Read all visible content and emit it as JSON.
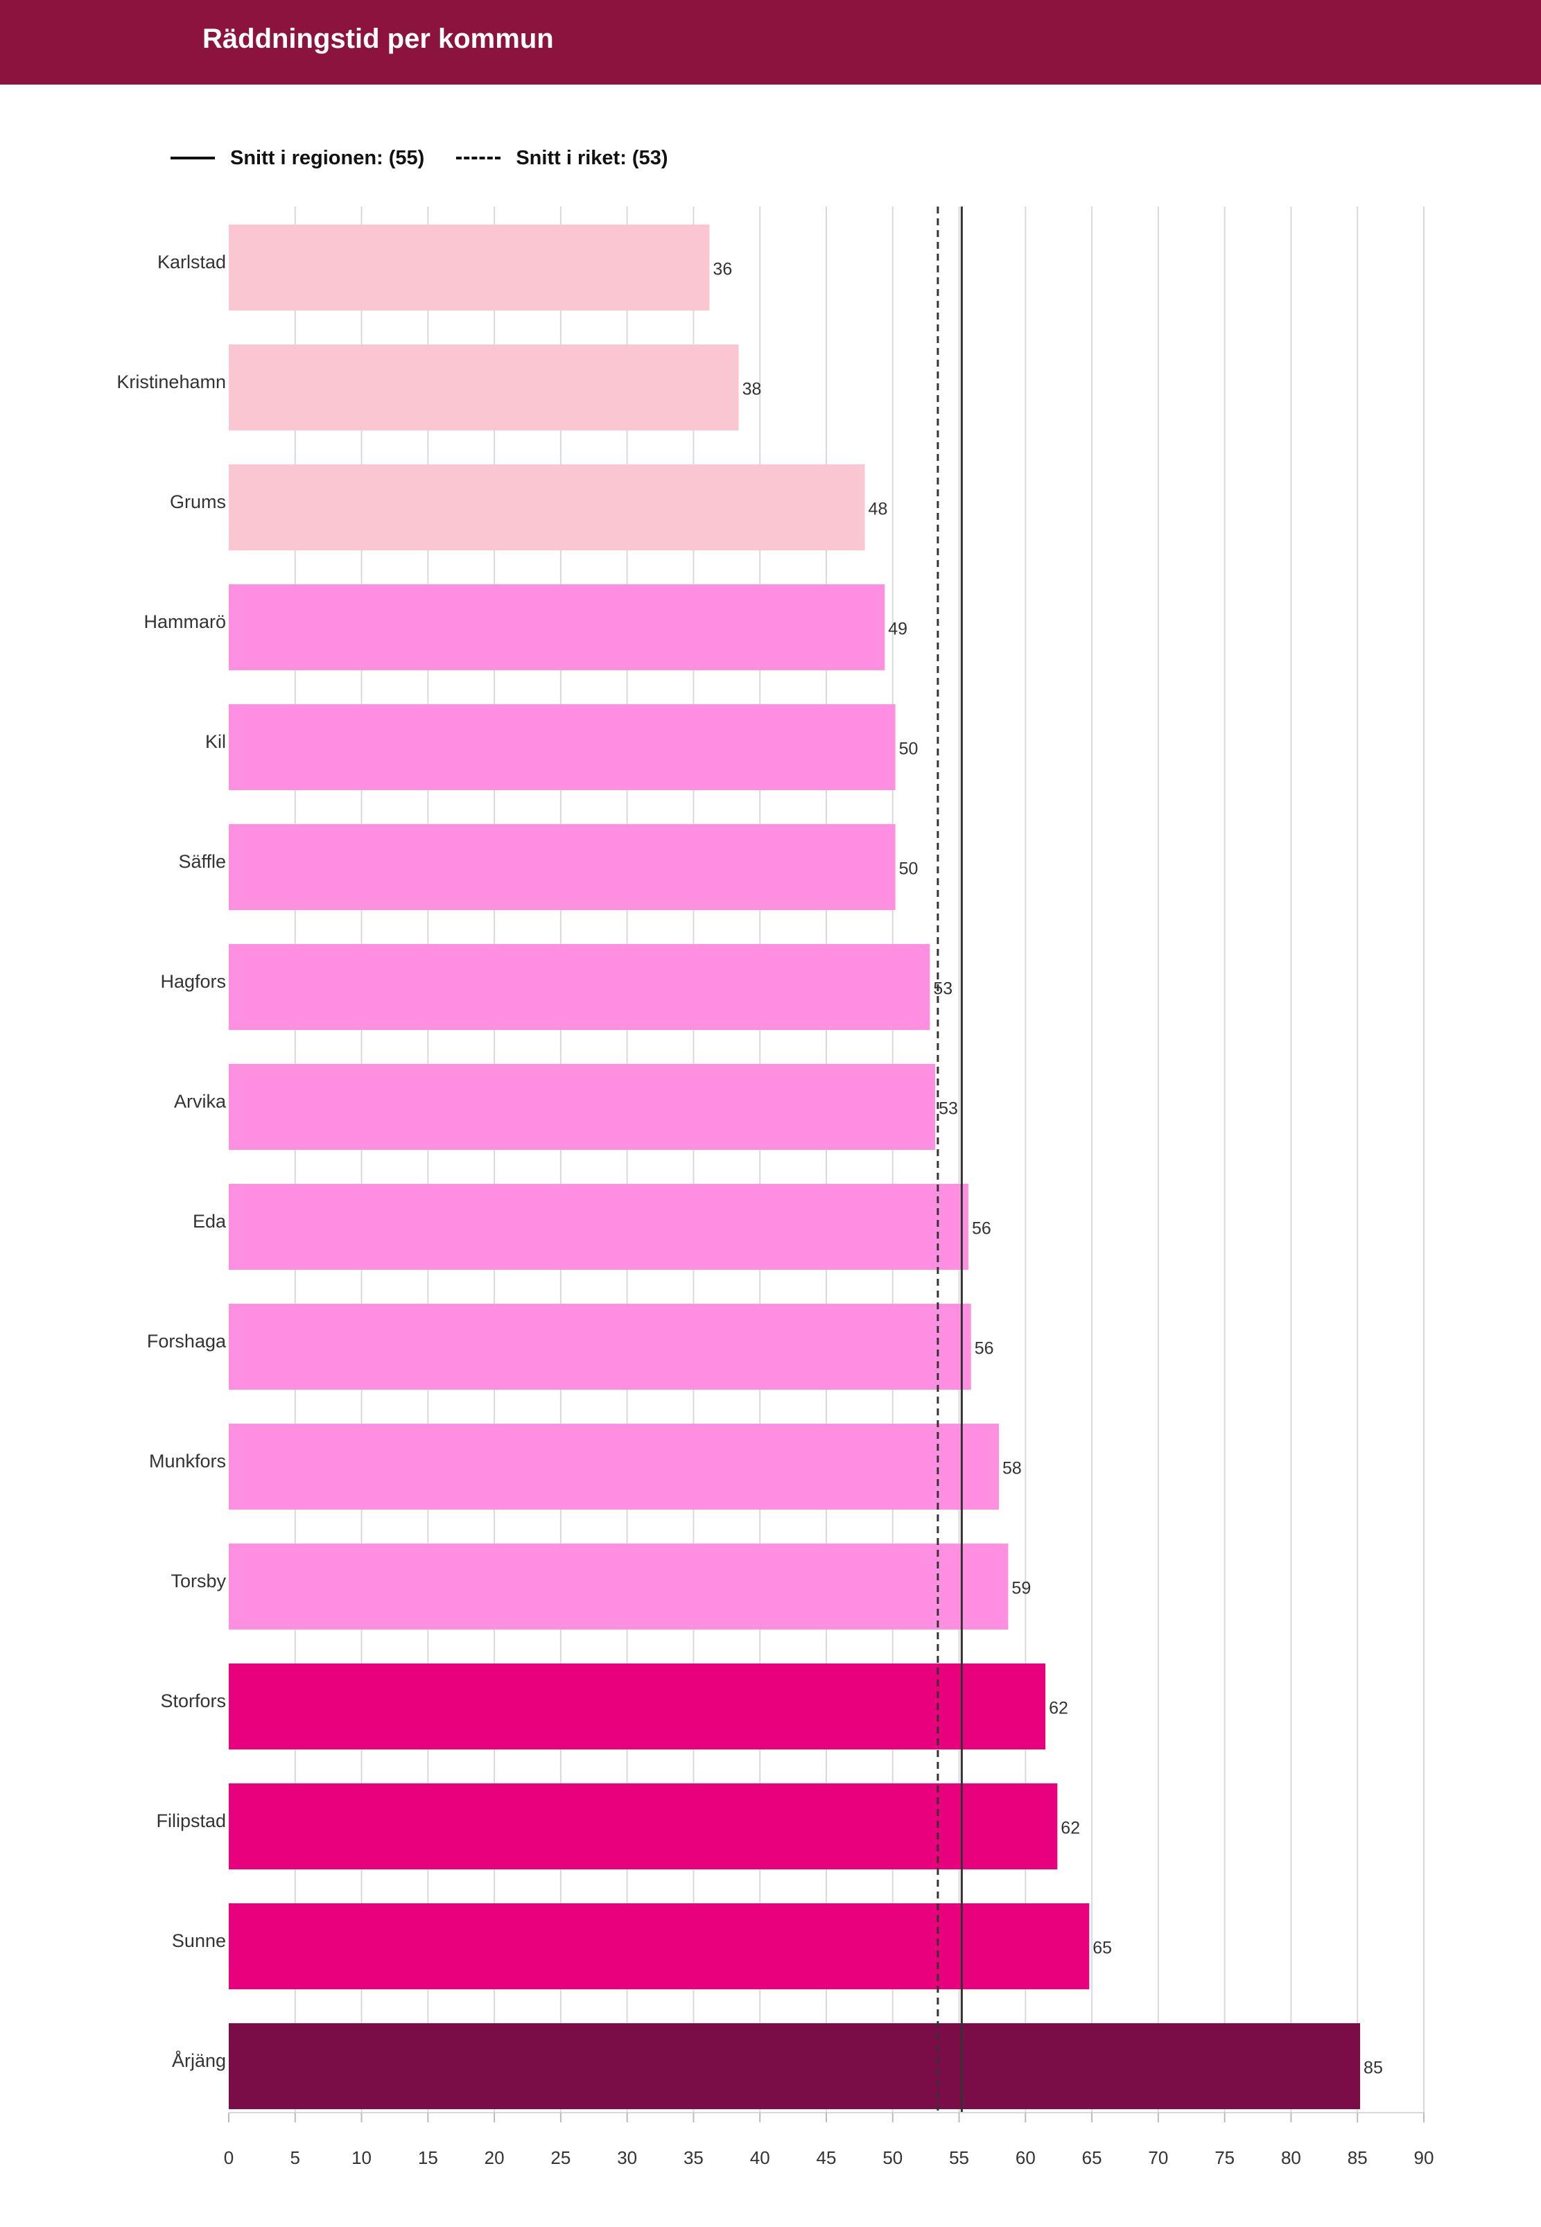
{
  "header": {
    "title": "Räddningstid per kommun"
  },
  "legend": {
    "region_label": "Snitt i regionen: (55)",
    "national_label": "Snitt i riket: (53)"
  },
  "colors": {
    "header_bg": "#8c133d",
    "tier_low": "#f9c6d2",
    "tier_mid": "#ff8fe0",
    "tier_high": "#e8007c",
    "tier_max": "#7a0c48",
    "grid": "#d9d9d9",
    "reference_line": "#333333"
  },
  "chart_data": {
    "type": "bar",
    "orientation": "horizontal",
    "title": "Räddningstid per kommun",
    "xlabel": "",
    "ylabel": "",
    "xlim": [
      0,
      90
    ],
    "x_ticks": [
      0,
      5,
      10,
      15,
      20,
      25,
      30,
      35,
      40,
      45,
      50,
      55,
      60,
      65,
      70,
      75,
      80,
      85,
      90
    ],
    "grid": true,
    "legend_position": "top-left",
    "categories": [
      "Karlstad",
      "Kristinehamn",
      "Grums",
      "Hammarö",
      "Kil",
      "Säffle",
      "Hagfors",
      "Arvika",
      "Eda",
      "Forshaga",
      "Munkfors",
      "Torsby",
      "Storfors",
      "Filipstad",
      "Sunne",
      "Årjäng"
    ],
    "values": [
      36,
      38,
      48,
      49,
      50,
      50,
      53,
      53,
      56,
      56,
      58,
      59,
      62,
      62,
      65,
      85
    ],
    "plotted_values": [
      36.2,
      38.4,
      47.9,
      49.4,
      50.2,
      50.2,
      52.8,
      53.2,
      55.7,
      55.9,
      58.0,
      58.7,
      61.5,
      62.4,
      64.8,
      85.2
    ],
    "tiers": [
      "low",
      "low",
      "low",
      "mid",
      "mid",
      "mid",
      "mid",
      "mid",
      "mid",
      "mid",
      "mid",
      "mid",
      "high",
      "high",
      "high",
      "max"
    ],
    "reference_lines": [
      {
        "name": "Snitt i regionen",
        "value": 55.2,
        "style": "solid"
      },
      {
        "name": "Snitt i riket",
        "value": 53.4,
        "style": "dashed"
      }
    ]
  }
}
